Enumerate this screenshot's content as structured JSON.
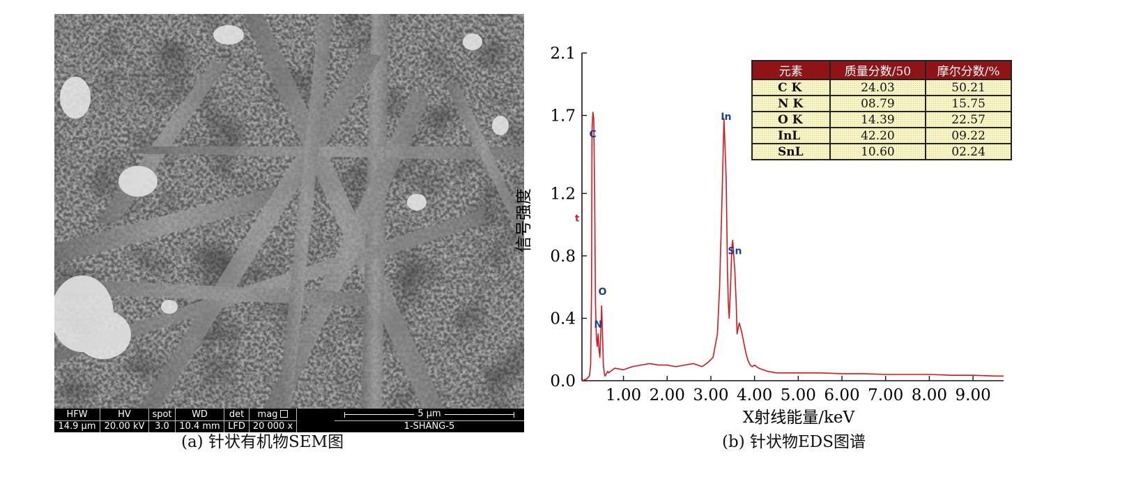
{
  "sem": {
    "databar": [
      {
        "header": "HFW",
        "value": "14.9 µm"
      },
      {
        "header": "HV",
        "value": "20.00 kV"
      },
      {
        "header": "spot",
        "value": "3.0"
      },
      {
        "header": "WD",
        "value": "10.4 mm"
      },
      {
        "header": "det",
        "value": "LFD"
      },
      {
        "header": "mag",
        "value": "20 000 x"
      }
    ],
    "scale_label": "5 µm",
    "sample_name": "1-SHANG-5"
  },
  "captions": {
    "a": "(a) 针状有机物SEM图",
    "b": "(b) 针状物EDS图谱"
  },
  "colors": {
    "spectrum_line": "#d8141c",
    "table_header_bg": "#8f1418",
    "table_cell_bg": "#f7f5c9",
    "peak_label": "#1f3f8f"
  },
  "table": {
    "headers": [
      "元素",
      "质量分数/50",
      "摩尔分数/%"
    ],
    "rows": [
      [
        "C K",
        "24.03",
        "50.21"
      ],
      [
        "N K",
        "08.79",
        "15.75"
      ],
      [
        "O K",
        "14.39",
        "22.57"
      ],
      [
        "InL",
        "42.20",
        "09.22"
      ],
      [
        "SnL",
        "10.60",
        "02.24"
      ]
    ]
  },
  "chart_data": {
    "type": "line",
    "xlabel": "X射线能量/keV",
    "ylabel": "信号强度",
    "xlim": [
      0.05,
      9.7
    ],
    "ylim": [
      0.0,
      2.1
    ],
    "xticks": [
      "1.00",
      "2.00",
      "3.00",
      "4.00",
      "5.00",
      "6.00",
      "7.00",
      "8.00",
      "9.00"
    ],
    "yticks": [
      "0.0",
      "0.4",
      "0.8",
      "1.2",
      "1.7",
      "2.1"
    ],
    "grid": false,
    "series": [
      {
        "x": [
          0.05,
          0.15,
          0.22,
          0.25,
          0.27,
          0.28,
          0.3,
          0.32,
          0.34,
          0.36,
          0.38,
          0.4,
          0.42,
          0.44,
          0.46,
          0.48,
          0.5,
          0.52,
          0.54,
          0.56,
          0.58,
          0.6,
          0.62,
          0.64,
          0.66,
          0.7,
          0.8,
          1.0,
          1.2,
          1.4,
          1.6,
          1.8,
          2.0,
          2.2,
          2.4,
          2.6,
          2.8,
          2.95,
          3.05,
          3.15,
          3.2,
          3.25,
          3.3,
          3.35,
          3.38,
          3.4,
          3.42,
          3.45,
          3.48,
          3.5,
          3.55,
          3.58,
          3.6,
          3.62,
          3.65,
          3.7,
          3.75,
          3.8,
          3.85,
          3.9,
          3.95,
          4.0,
          4.1,
          4.3,
          4.5,
          5.0,
          5.5,
          6.0,
          6.5,
          7.0,
          7.5,
          8.0,
          8.5,
          9.0,
          9.5,
          9.7
        ],
        "y": [
          0.0,
          0.01,
          0.03,
          0.1,
          0.6,
          1.6,
          1.72,
          1.68,
          1.2,
          0.5,
          0.28,
          0.22,
          0.3,
          0.2,
          0.15,
          0.3,
          0.48,
          0.3,
          0.1,
          0.05,
          0.03,
          0.04,
          0.05,
          0.06,
          0.05,
          0.06,
          0.08,
          0.07,
          0.09,
          0.1,
          0.11,
          0.1,
          0.1,
          0.09,
          0.1,
          0.11,
          0.09,
          0.12,
          0.15,
          0.3,
          0.6,
          1.1,
          1.68,
          1.3,
          0.7,
          0.5,
          0.4,
          0.6,
          0.85,
          0.9,
          0.7,
          0.5,
          0.3,
          0.33,
          0.37,
          0.32,
          0.25,
          0.18,
          0.13,
          0.1,
          0.09,
          0.1,
          0.08,
          0.06,
          0.05,
          0.05,
          0.05,
          0.045,
          0.045,
          0.04,
          0.04,
          0.04,
          0.035,
          0.035,
          0.03,
          0.03
        ]
      }
    ],
    "annotations": [
      {
        "text": "C",
        "x": 0.3,
        "y": 1.56
      },
      {
        "text": "N",
        "x": 0.42,
        "y": 0.34
      },
      {
        "text": "O",
        "x": 0.52,
        "y": 0.55
      },
      {
        "text": "In",
        "x": 3.35,
        "y": 1.67
      },
      {
        "text": "Sn",
        "x": 3.55,
        "y": 0.81
      },
      {
        "text": "t",
        "x": 0.05,
        "y": 1.02
      }
    ]
  }
}
